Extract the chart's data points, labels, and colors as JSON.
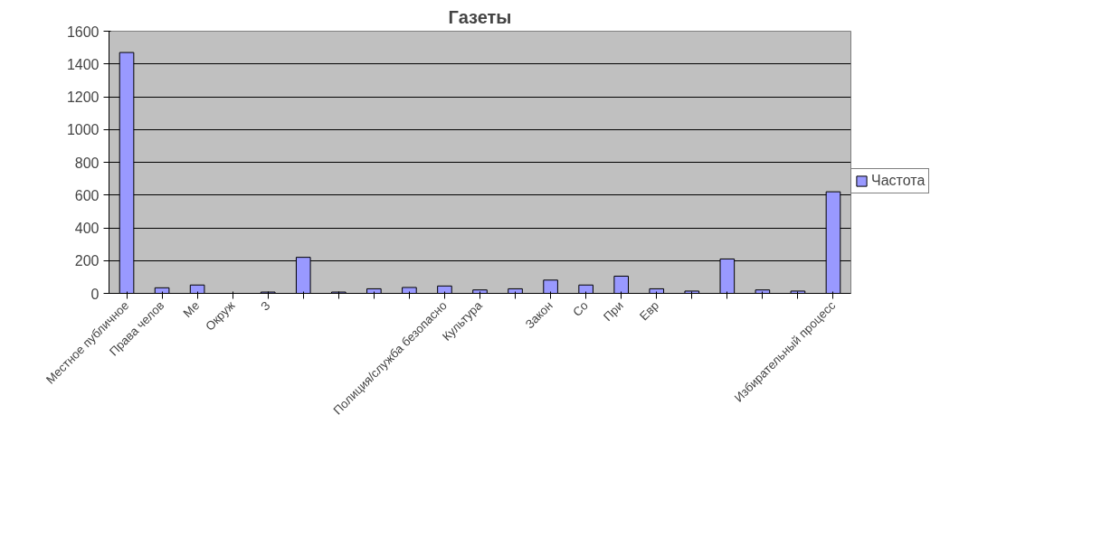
{
  "chart_data": {
    "type": "bar",
    "title": "Газеты",
    "categories": [
      "Местное публичное",
      "Права челов",
      "Ме",
      "Окруж",
      "З",
      null,
      null,
      null,
      null,
      "Полиция/служба безопасно",
      "Культура",
      null,
      "Закон",
      "Со",
      "При",
      "Евр",
      null,
      null,
      null,
      null,
      "Избирательный процесс"
    ],
    "series": [
      {
        "name": "Частота",
        "color": "#9999ff",
        "values": [
          1470,
          34,
          51,
          0,
          8,
          220,
          8,
          28,
          36,
          45,
          21,
          28,
          81,
          51,
          105,
          28,
          14,
          210,
          21,
          14,
          620
        ]
      }
    ],
    "ylim": [
      0,
      1600
    ],
    "yticks": [
      0,
      200,
      400,
      600,
      800,
      1000,
      1200,
      1400,
      1600
    ],
    "grid": "y",
    "legend": "right"
  }
}
